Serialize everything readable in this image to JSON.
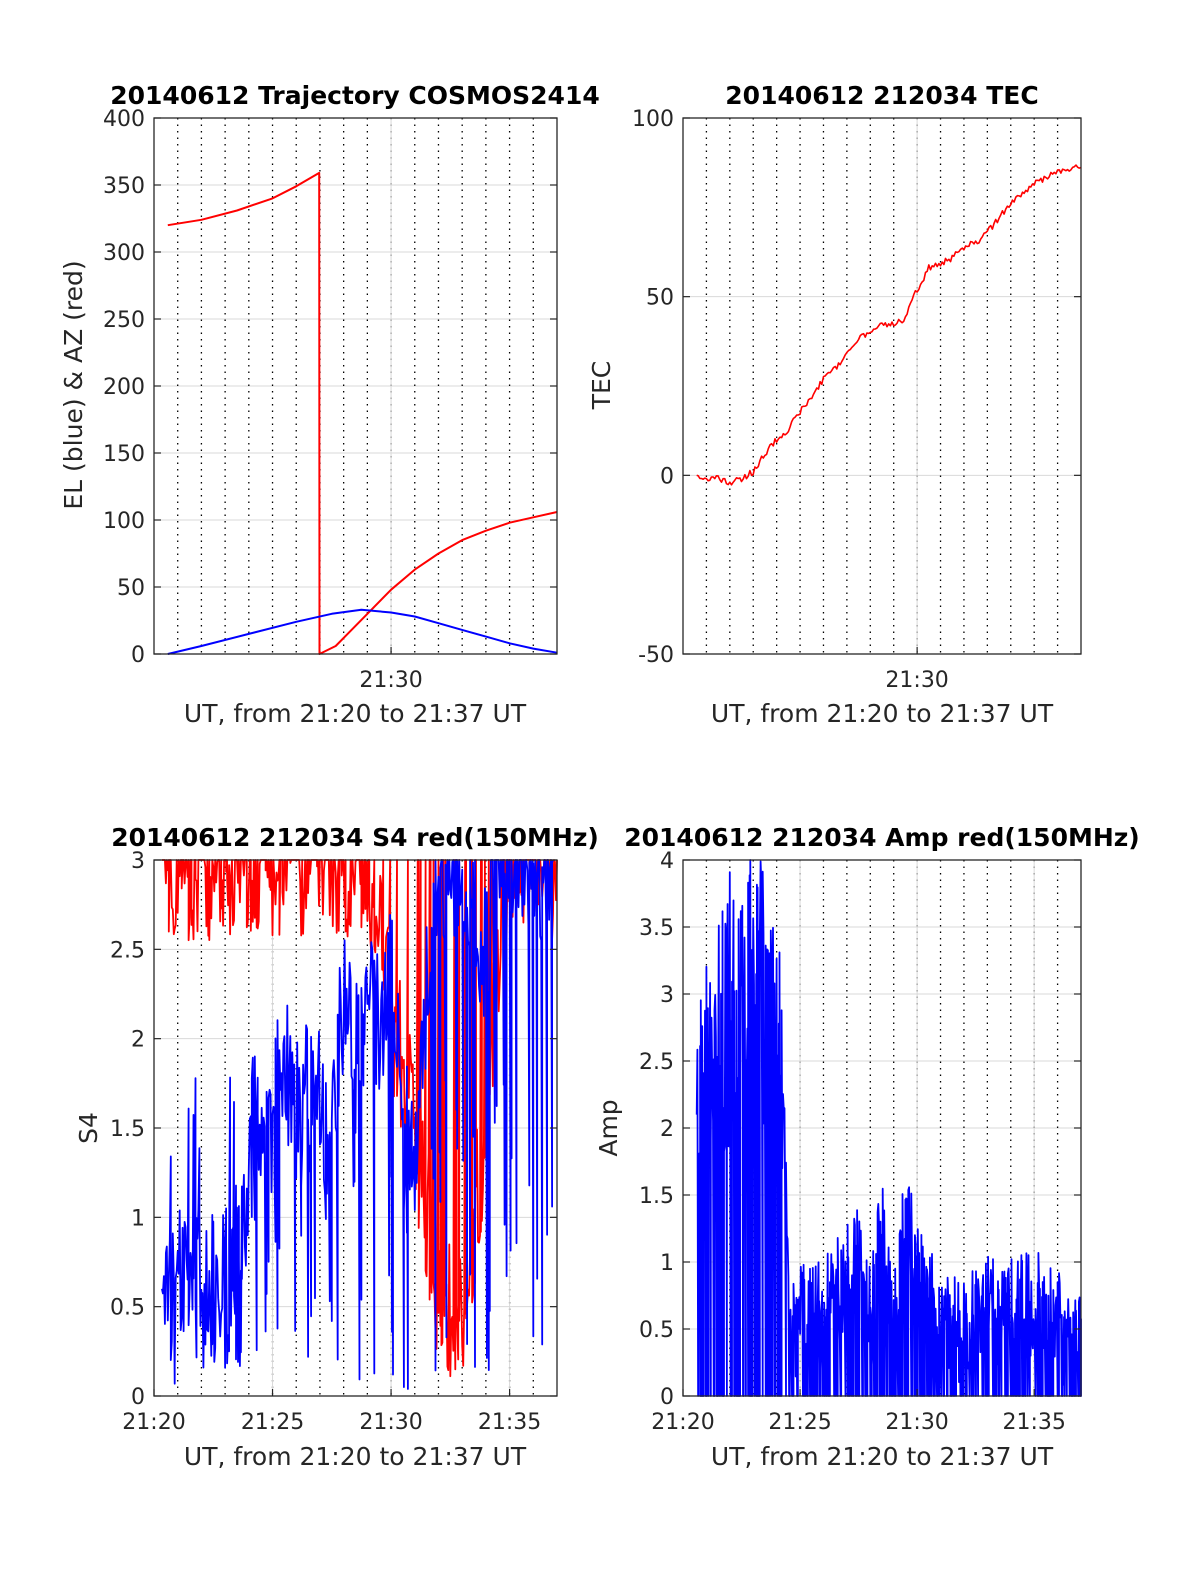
{
  "figure": {
    "colors": {
      "red": "#ff0000",
      "blue": "#0000ff",
      "axis": "#262626",
      "grid": "#d9d9d9",
      "dotted": "#000000",
      "background": "#ffffff"
    }
  },
  "chart_data": [
    {
      "id": "trajectory",
      "type": "line",
      "title": "20140612 Trajectory COSMOS2414",
      "xlabel": "UT, from 21:20 to 21:37 UT",
      "ylabel": "EL (blue) & AZ (red)",
      "xlim_minutes_utc": [
        "21:20",
        "21:37"
      ],
      "ylim": [
        0,
        400
      ],
      "yticks": [
        0,
        50,
        100,
        150,
        200,
        250,
        300,
        350,
        400
      ],
      "xticks": [
        {
          "time": "21:30",
          "label": "21:30"
        }
      ],
      "dotted_vertical_times": [
        "21:21",
        "21:22",
        "21:23",
        "21:24",
        "21:25",
        "21:26",
        "21:27",
        "21:28",
        "21:29",
        "21:30",
        "21:31",
        "21:32",
        "21:33",
        "21:34",
        "21:35",
        "21:36"
      ],
      "grid": true,
      "series": [
        {
          "name": "AZ",
          "color": "#ff0000",
          "points": [
            [
              "21:20:35",
              320
            ],
            [
              "21:22:00",
              324
            ],
            [
              "21:23:30",
              331
            ],
            [
              "21:25:00",
              340
            ],
            [
              "21:26:00",
              349
            ],
            [
              "21:26:58",
              359
            ],
            [
              "21:26:59",
              0
            ],
            [
              "21:27:40",
              6
            ],
            [
              "21:29:00",
              30
            ],
            [
              "21:30:00",
              48
            ],
            [
              "21:31:00",
              63
            ],
            [
              "21:32:00",
              75
            ],
            [
              "21:33:00",
              85
            ],
            [
              "21:34:00",
              92
            ],
            [
              "21:35:00",
              98
            ],
            [
              "21:36:00",
              102
            ],
            [
              "21:37:00",
              106
            ]
          ]
        },
        {
          "name": "EL",
          "color": "#0000ff",
          "points": [
            [
              "21:20:35",
              0
            ],
            [
              "21:22:00",
              6
            ],
            [
              "21:24:00",
              15
            ],
            [
              "21:26:00",
              24
            ],
            [
              "21:27:30",
              30
            ],
            [
              "21:28:45",
              33
            ],
            [
              "21:30:00",
              31
            ],
            [
              "21:31:00",
              28
            ],
            [
              "21:32:00",
              23
            ],
            [
              "21:33:00",
              18
            ],
            [
              "21:34:00",
              13
            ],
            [
              "21:35:00",
              8
            ],
            [
              "21:36:00",
              4
            ],
            [
              "21:37:00",
              1
            ]
          ]
        }
      ]
    },
    {
      "id": "tec",
      "type": "line",
      "title": "20140612 212034 TEC",
      "xlabel": "UT, from 21:20 to 21:37 UT",
      "ylabel": "TEC",
      "xlim_minutes_utc": [
        "21:20",
        "21:37"
      ],
      "ylim": [
        -50,
        100
      ],
      "yticks": [
        -50,
        0,
        50,
        100
      ],
      "xticks": [
        {
          "time": "21:30",
          "label": "21:30"
        }
      ],
      "dotted_vertical_times": [
        "21:21",
        "21:22",
        "21:23",
        "21:24",
        "21:25",
        "21:26",
        "21:27",
        "21:28",
        "21:29",
        "21:30",
        "21:31",
        "21:32",
        "21:33",
        "21:34",
        "21:35",
        "21:36"
      ],
      "grid": true,
      "series": [
        {
          "name": "TEC",
          "color": "#ff0000",
          "points": [
            [
              "21:20:35",
              0
            ],
            [
              "21:21:00",
              -1
            ],
            [
              "21:21:30",
              -1
            ],
            [
              "21:22:00",
              -2
            ],
            [
              "21:22:30",
              -1
            ],
            [
              "21:23:00",
              1
            ],
            [
              "21:23:30",
              6
            ],
            [
              "21:24:00",
              10
            ],
            [
              "21:24:30",
              13
            ],
            [
              "21:25:00",
              18
            ],
            [
              "21:25:30",
              22
            ],
            [
              "21:26:00",
              27
            ],
            [
              "21:26:30",
              30
            ],
            [
              "21:27:00",
              34
            ],
            [
              "21:27:30",
              38
            ],
            [
              "21:28:00",
              40
            ],
            [
              "21:28:30",
              42
            ],
            [
              "21:29:00",
              42
            ],
            [
              "21:29:30",
              44
            ],
            [
              "21:30:00",
              52
            ],
            [
              "21:30:30",
              58
            ],
            [
              "21:31:00",
              59
            ],
            [
              "21:31:30",
              61
            ],
            [
              "21:32:00",
              64
            ],
            [
              "21:32:30",
              65
            ],
            [
              "21:33:00",
              68
            ],
            [
              "21:33:30",
              72
            ],
            [
              "21:34:00",
              76
            ],
            [
              "21:34:30",
              79
            ],
            [
              "21:35:00",
              82
            ],
            [
              "21:35:30",
              83
            ],
            [
              "21:36:00",
              85
            ],
            [
              "21:37:00",
              87
            ]
          ]
        }
      ]
    },
    {
      "id": "s4",
      "type": "line",
      "title": "20140612 212034 S4 red(150MHz)",
      "xlabel": "UT, from 21:20 to 21:37 UT",
      "ylabel": "S4",
      "xlim_minutes_utc": [
        "21:20",
        "21:37"
      ],
      "ylim": [
        0,
        3
      ],
      "yticks": [
        0,
        0.5,
        1,
        1.5,
        2,
        2.5,
        3
      ],
      "xticks": [
        {
          "time": "21:20",
          "label": "21:20"
        },
        {
          "time": "21:25",
          "label": "21:25"
        },
        {
          "time": "21:30",
          "label": "21:30"
        },
        {
          "time": "21:35",
          "label": "21:35"
        }
      ],
      "dotted_vertical_times": [
        "21:21",
        "21:22",
        "21:23",
        "21:24",
        "21:25",
        "21:26",
        "21:27",
        "21:28",
        "21:29",
        "21:30",
        "21:31",
        "21:32",
        "21:33",
        "21:34",
        "21:35",
        "21:36"
      ],
      "grid": true,
      "series": [
        {
          "name": "S4 red",
          "color": "#ff0000",
          "points": [
            [
              "21:20:20",
              3
            ],
            [
              "21:21:00",
              3
            ],
            [
              "21:22:00",
              3
            ],
            [
              "21:23:00",
              3
            ],
            [
              "21:24:00",
              3
            ],
            [
              "21:25:00",
              3
            ],
            [
              "21:26:00",
              3
            ],
            [
              "21:27:00",
              3
            ],
            [
              "21:28:00",
              3
            ],
            [
              "21:29:00",
              3
            ],
            [
              "21:30:00",
              2.2
            ],
            [
              "21:31:00",
              1.5
            ],
            [
              "21:32:00",
              0.6
            ],
            [
              "21:33:00",
              0.3
            ],
            [
              "21:34:00",
              1.6
            ],
            [
              "21:35:00",
              3
            ],
            [
              "21:36:00",
              3
            ],
            [
              "21:37:00",
              3
            ]
          ]
        },
        {
          "name": "S4 blue",
          "color": "#0000ff",
          "points": [
            [
              "21:20:20",
              0.6
            ],
            [
              "21:21:00",
              0.62
            ],
            [
              "21:22:00",
              0.6
            ],
            [
              "21:23:00",
              0.62
            ],
            [
              "21:23:40",
              0.6
            ],
            [
              "21:24:10",
              1.5
            ],
            [
              "21:25:00",
              1.55
            ],
            [
              "21:25:30",
              1.8
            ],
            [
              "21:26:00",
              1.55
            ],
            [
              "21:27:00",
              1.8
            ],
            [
              "21:27:30",
              1.3
            ],
            [
              "21:28:00",
              2.3
            ],
            [
              "21:28:30",
              1.8
            ],
            [
              "21:29:00",
              2.6
            ],
            [
              "21:29:30",
              2.0
            ],
            [
              "21:30:00",
              2.3
            ],
            [
              "21:30:30",
              1.5
            ],
            [
              "21:31:00",
              1.2
            ],
            [
              "21:31:30",
              2.2
            ],
            [
              "21:32:00",
              3
            ],
            [
              "21:33:00",
              3
            ],
            [
              "21:34:00",
              2.4
            ],
            [
              "21:34:30",
              3
            ],
            [
              "21:35:00",
              3
            ],
            [
              "21:36:00",
              3
            ],
            [
              "21:36:50",
              3
            ]
          ]
        }
      ]
    },
    {
      "id": "amp",
      "type": "line",
      "title": "20140612 212034 Amp red(150MHz)",
      "xlabel": "UT, from 21:20 to 21:37 UT",
      "ylabel": "Amp",
      "xlim_minutes_utc": [
        "21:20",
        "21:37"
      ],
      "ylim": [
        0,
        4
      ],
      "yticks": [
        0,
        0.5,
        1,
        1.5,
        2,
        2.5,
        3,
        3.5,
        4
      ],
      "xticks": [
        {
          "time": "21:20",
          "label": "21:20"
        },
        {
          "time": "21:25",
          "label": "21:25"
        },
        {
          "time": "21:30",
          "label": "21:30"
        },
        {
          "time": "21:35",
          "label": "21:35"
        }
      ],
      "dotted_vertical_times": [
        "21:21",
        "21:22",
        "21:23",
        "21:24",
        "21:25",
        "21:26",
        "21:27",
        "21:28",
        "21:29",
        "21:30",
        "21:31",
        "21:32",
        "21:33",
        "21:34",
        "21:35",
        "21:36"
      ],
      "grid": true,
      "series": [
        {
          "name": "Amp",
          "color": "#0000ff",
          "points": [
            [
              "21:20:35",
              2.1
            ],
            [
              "21:21:00",
              2.4
            ],
            [
              "21:21:30",
              2.6
            ],
            [
              "21:22:00",
              2.9
            ],
            [
              "21:22:30",
              2.7
            ],
            [
              "21:23:00",
              3.15
            ],
            [
              "21:23:30",
              2.9
            ],
            [
              "21:24:00",
              2.8
            ],
            [
              "21:24:20",
              2.3
            ],
            [
              "21:24:30",
              0.5
            ],
            [
              "21:25:00",
              0.55
            ],
            [
              "21:26:00",
              0.6
            ],
            [
              "21:27:00",
              0.9
            ],
            [
              "21:27:30",
              1.25
            ],
            [
              "21:28:00",
              0.5
            ],
            [
              "21:28:30",
              1.25
            ],
            [
              "21:29:00",
              0.45
            ],
            [
              "21:29:30",
              1.3
            ],
            [
              "21:30:00",
              0.9
            ],
            [
              "21:31:00",
              0.5
            ],
            [
              "21:32:00",
              0.45
            ],
            [
              "21:33:00",
              0.65
            ],
            [
              "21:34:00",
              0.6
            ],
            [
              "21:35:00",
              0.7
            ],
            [
              "21:36:00",
              0.55
            ],
            [
              "21:37:00",
              0.35
            ]
          ]
        }
      ]
    }
  ]
}
